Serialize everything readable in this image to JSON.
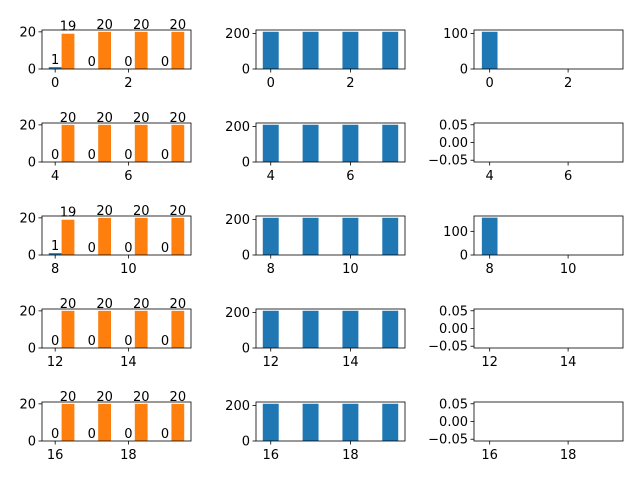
{
  "colors": {
    "series_a": "#1f77b4",
    "series_b": "#ff7f0e"
  },
  "chart_data": [
    {
      "type": "bar",
      "row": 0,
      "col": 0,
      "x": [
        0,
        1,
        2,
        3
      ],
      "series": [
        {
          "values": [
            1,
            0,
            0,
            0
          ],
          "color": "#1f77b4"
        },
        {
          "values": [
            19,
            20,
            20,
            20
          ],
          "color": "#ff7f0e"
        }
      ],
      "ylim": [
        0,
        21
      ],
      "yticks": [
        0,
        20
      ],
      "xticks": [
        0,
        2
      ],
      "data_labels": true
    },
    {
      "type": "bar",
      "row": 0,
      "col": 1,
      "x": [
        0,
        1,
        2,
        3
      ],
      "series": [
        {
          "values": [
            210,
            210,
            210,
            210
          ],
          "color": "#1f77b4"
        }
      ],
      "ylim": [
        0,
        220
      ],
      "yticks": [
        0,
        200
      ],
      "xticks": [
        0,
        2
      ],
      "data_labels": false
    },
    {
      "type": "bar",
      "row": 0,
      "col": 2,
      "x": [
        0
      ],
      "series": [
        {
          "values": [
            105
          ],
          "color": "#1f77b4"
        }
      ],
      "xlim": [
        -0.4,
        3.4
      ],
      "ylim": [
        0,
        110
      ],
      "yticks": [
        0,
        100
      ],
      "xticks": [
        0,
        2
      ],
      "data_labels": false
    },
    {
      "type": "bar",
      "row": 1,
      "col": 0,
      "x": [
        4,
        5,
        6,
        7
      ],
      "series": [
        {
          "values": [
            0,
            0,
            0,
            0
          ],
          "color": "#1f77b4"
        },
        {
          "values": [
            20,
            20,
            20,
            20
          ],
          "color": "#ff7f0e"
        }
      ],
      "ylim": [
        0,
        21
      ],
      "yticks": [
        0,
        20
      ],
      "xticks": [
        4,
        6
      ],
      "data_labels": true
    },
    {
      "type": "bar",
      "row": 1,
      "col": 1,
      "x": [
        4,
        5,
        6,
        7
      ],
      "series": [
        {
          "values": [
            210,
            210,
            210,
            210
          ],
          "color": "#1f77b4"
        }
      ],
      "ylim": [
        0,
        220
      ],
      "yticks": [
        0,
        200
      ],
      "xticks": [
        4,
        6
      ],
      "data_labels": false
    },
    {
      "type": "bar",
      "row": 1,
      "col": 2,
      "x": [],
      "series": [],
      "xlim": [
        3.6,
        7.4
      ],
      "ylim": [
        -0.055,
        0.055
      ],
      "yticks": [
        0.05,
        0.0,
        -0.05
      ],
      "ytick_labels": [
        "0.05",
        "0.00",
        "−0.05"
      ],
      "xticks": [
        4,
        6
      ],
      "data_labels": false
    },
    {
      "type": "bar",
      "row": 2,
      "col": 0,
      "x": [
        8,
        9,
        10,
        11
      ],
      "series": [
        {
          "values": [
            1,
            0,
            0,
            0
          ],
          "color": "#1f77b4"
        },
        {
          "values": [
            19,
            20,
            20,
            20
          ],
          "color": "#ff7f0e"
        }
      ],
      "ylim": [
        0,
        21
      ],
      "yticks": [
        0,
        20
      ],
      "xticks": [
        8,
        10
      ],
      "data_labels": true
    },
    {
      "type": "bar",
      "row": 2,
      "col": 1,
      "x": [
        8,
        9,
        10,
        11
      ],
      "series": [
        {
          "values": [
            210,
            210,
            210,
            210
          ],
          "color": "#1f77b4"
        }
      ],
      "ylim": [
        0,
        220
      ],
      "yticks": [
        0,
        200
      ],
      "xticks": [
        8,
        10
      ],
      "data_labels": false
    },
    {
      "type": "bar",
      "row": 2,
      "col": 2,
      "x": [
        8
      ],
      "series": [
        {
          "values": [
            158
          ],
          "color": "#1f77b4"
        }
      ],
      "xlim": [
        7.6,
        11.4
      ],
      "ylim": [
        0,
        165
      ],
      "yticks": [
        0,
        100
      ],
      "xticks": [
        8,
        10
      ],
      "data_labels": false
    },
    {
      "type": "bar",
      "row": 3,
      "col": 0,
      "x": [
        12,
        13,
        14,
        15
      ],
      "series": [
        {
          "values": [
            0,
            0,
            0,
            0
          ],
          "color": "#1f77b4"
        },
        {
          "values": [
            20,
            20,
            20,
            20
          ],
          "color": "#ff7f0e"
        }
      ],
      "ylim": [
        0,
        21
      ],
      "yticks": [
        0,
        20
      ],
      "xticks": [
        12,
        14
      ],
      "data_labels": true
    },
    {
      "type": "bar",
      "row": 3,
      "col": 1,
      "x": [
        12,
        13,
        14,
        15
      ],
      "series": [
        {
          "values": [
            210,
            210,
            210,
            210
          ],
          "color": "#1f77b4"
        }
      ],
      "ylim": [
        0,
        220
      ],
      "yticks": [
        0,
        200
      ],
      "xticks": [
        12,
        14
      ],
      "data_labels": false
    },
    {
      "type": "bar",
      "row": 3,
      "col": 2,
      "x": [],
      "series": [],
      "xlim": [
        11.6,
        15.4
      ],
      "ylim": [
        -0.055,
        0.055
      ],
      "yticks": [
        0.05,
        0.0,
        -0.05
      ],
      "ytick_labels": [
        "0.05",
        "0.00",
        "−0.05"
      ],
      "xticks": [
        12,
        14
      ],
      "data_labels": false
    },
    {
      "type": "bar",
      "row": 4,
      "col": 0,
      "x": [
        16,
        17,
        18,
        19
      ],
      "series": [
        {
          "values": [
            0,
            0,
            0,
            0
          ],
          "color": "#1f77b4"
        },
        {
          "values": [
            20,
            20,
            20,
            20
          ],
          "color": "#ff7f0e"
        }
      ],
      "ylim": [
        0,
        21
      ],
      "yticks": [
        0,
        20
      ],
      "xticks": [
        16,
        18
      ],
      "data_labels": true
    },
    {
      "type": "bar",
      "row": 4,
      "col": 1,
      "x": [
        16,
        17,
        18,
        19
      ],
      "series": [
        {
          "values": [
            210,
            210,
            210,
            210
          ],
          "color": "#1f77b4"
        }
      ],
      "ylim": [
        0,
        220
      ],
      "yticks": [
        0,
        200
      ],
      "xticks": [
        16,
        18
      ],
      "data_labels": false
    },
    {
      "type": "bar",
      "row": 4,
      "col": 2,
      "x": [],
      "series": [],
      "xlim": [
        15.6,
        19.4
      ],
      "ylim": [
        -0.055,
        0.055
      ],
      "yticks": [
        0.05,
        0.0,
        -0.05
      ],
      "ytick_labels": [
        "0.05",
        "0.00",
        "−0.05"
      ],
      "xticks": [
        16,
        18
      ],
      "data_labels": false
    }
  ]
}
